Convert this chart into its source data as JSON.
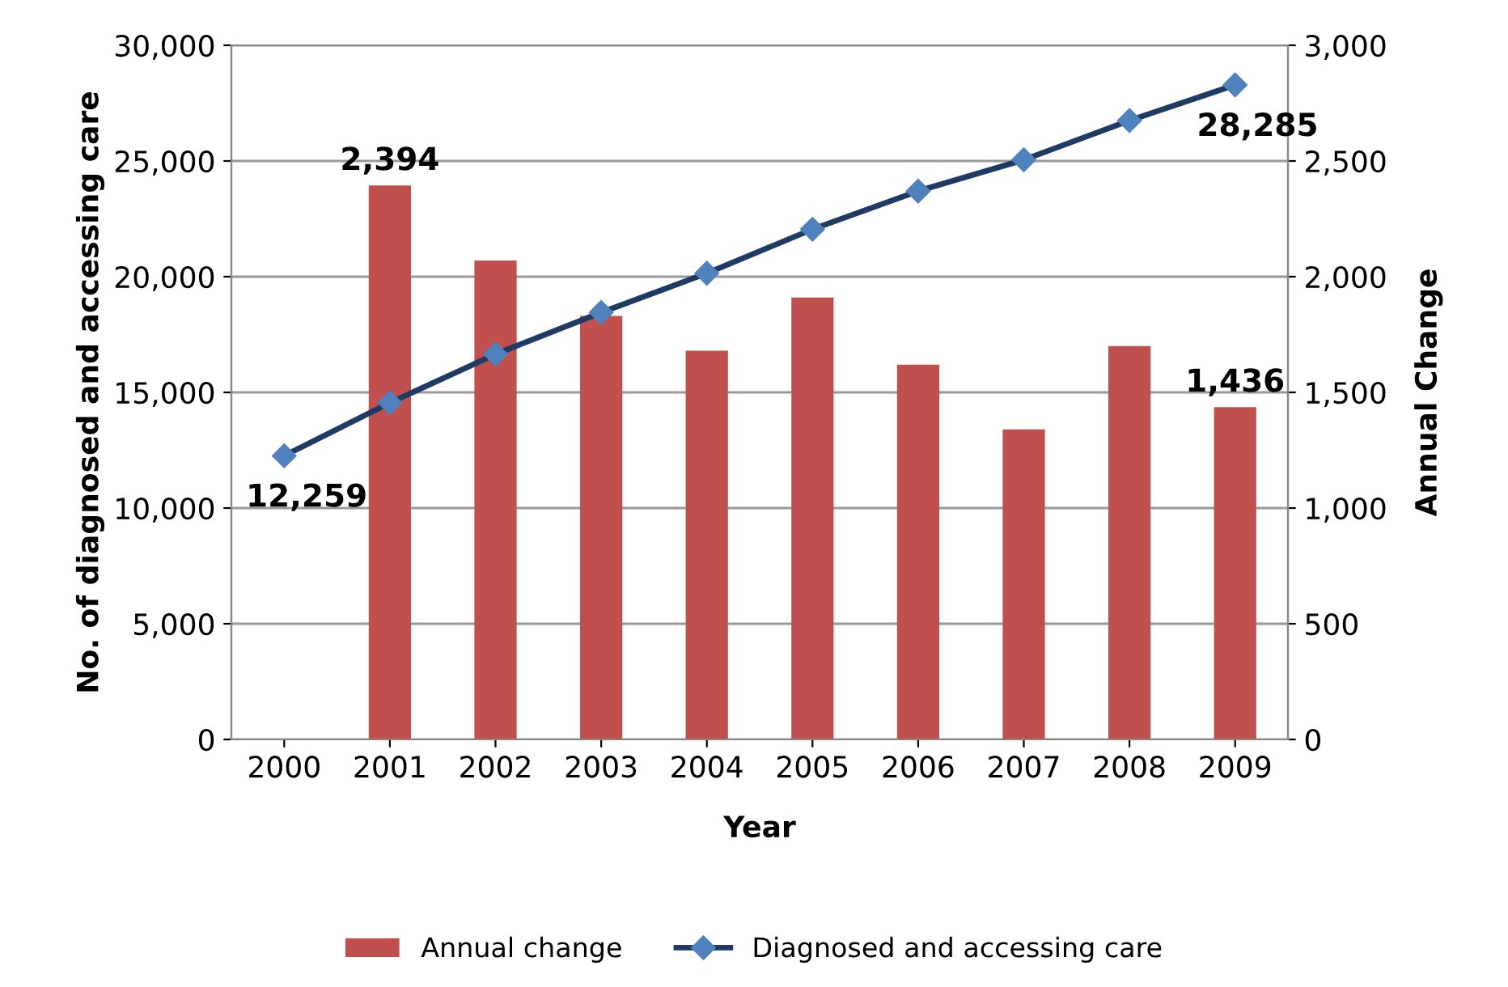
{
  "chart_data": {
    "type": "bar",
    "xlabel": "Year",
    "ylabel": "No. of diagnosed and accessing care",
    "y2label": "Annual Change",
    "categories": [
      "2000",
      "2001",
      "2002",
      "2003",
      "2004",
      "2005",
      "2006",
      "2007",
      "2008",
      "2009"
    ],
    "series": [
      {
        "name": "Annual change",
        "axis": "y2",
        "color": "#c0504d",
        "values": [
          null,
          2394,
          2070,
          1830,
          1680,
          1910,
          1620,
          1340,
          1700,
          1436
        ],
        "value_labels": [
          null,
          "2,394",
          null,
          null,
          null,
          null,
          null,
          null,
          null,
          "1,436"
        ]
      },
      {
        "name": "Diagnosed and accessing care",
        "type": "line",
        "color": "#1f3b63",
        "marker": "diamond",
        "values": [
          12259,
          14550,
          16650,
          18450,
          20150,
          22050,
          23700,
          25050,
          26750,
          28285
        ],
        "value_labels": [
          "12,259",
          null,
          null,
          null,
          null,
          null,
          null,
          null,
          null,
          "28,285"
        ]
      }
    ],
    "ylim": [
      0,
      30000
    ],
    "yticks": [
      {
        "value": 0,
        "label": "0"
      },
      {
        "value": 5000,
        "label": "5,000"
      },
      {
        "value": 10000,
        "label": "10,000"
      },
      {
        "value": 15000,
        "label": "15,000"
      },
      {
        "value": 20000,
        "label": "20,000"
      },
      {
        "value": 25000,
        "label": "25,000"
      },
      {
        "value": 30000,
        "label": "30,000"
      }
    ],
    "y2lim": [
      0,
      3000
    ],
    "y2ticks": [
      {
        "value": 0,
        "label": "0"
      },
      {
        "value": 500,
        "label": "500"
      },
      {
        "value": 1000,
        "label": "1,000"
      },
      {
        "value": 1500,
        "label": "1,500"
      },
      {
        "value": 2000,
        "label": "2,000"
      },
      {
        "value": 2500,
        "label": "2,500"
      },
      {
        "value": 3000,
        "label": "3,000"
      }
    ],
    "grid": "y",
    "legend": "bottom"
  }
}
